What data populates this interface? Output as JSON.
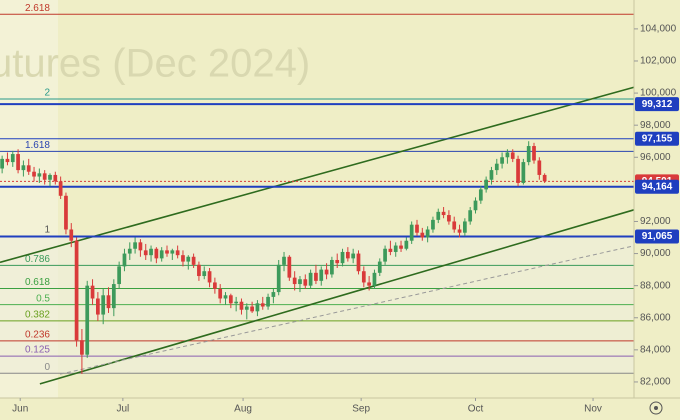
{
  "chart_data": {
    "type": "candlestick",
    "watermark": "utures (Dec 2024)",
    "up_color": "#3d9a5b",
    "down_color": "#d93a3a",
    "ylim": [
      81000,
      105800
    ],
    "yticks": [
      {
        "value": 82000,
        "label": "82,000"
      },
      {
        "value": 84000,
        "label": "84,000"
      },
      {
        "value": 86000,
        "label": "86,000"
      },
      {
        "value": 88000,
        "label": "88,000"
      },
      {
        "value": 90000,
        "label": "90,000"
      },
      {
        "value": 92000,
        "label": "92,000"
      },
      {
        "value": 96000,
        "label": "96,000"
      },
      {
        "value": 98000,
        "label": "98,000"
      },
      {
        "value": 100000,
        "label": "100,000"
      },
      {
        "value": 102000,
        "label": "102,000"
      },
      {
        "value": 104000,
        "label": "104,000"
      }
    ],
    "xlim": [
      -0.4,
      118.8
    ],
    "xticks": [
      {
        "value": 3.4,
        "label": "Jun"
      },
      {
        "value": 22.7,
        "label": "Jul"
      },
      {
        "value": 45.3,
        "label": "Aug"
      },
      {
        "value": 67.5,
        "label": "Sep"
      },
      {
        "value": 89,
        "label": "Oct"
      },
      {
        "value": 111.1,
        "label": "Nov"
      }
    ],
    "fib": {
      "low": 82545,
      "high": 91090,
      "levels": [
        {
          "ratio": 2.618,
          "color": "#c0392b"
        },
        {
          "ratio": 2,
          "color": "#2a9a8a"
        },
        {
          "ratio": 1.618,
          "color": "#2a45b0"
        },
        {
          "ratio": 1,
          "color": "#555555"
        },
        {
          "ratio": 0.786,
          "color": "#3a9a5a"
        },
        {
          "ratio": 0.618,
          "color": "#3aa040"
        },
        {
          "ratio": 0.5,
          "color": "#4caf50"
        },
        {
          "ratio": 0.382,
          "color": "#6aa020"
        },
        {
          "ratio": 0.236,
          "color": "#c0392b"
        },
        {
          "ratio": 0.125,
          "color": "#8a5fb0"
        },
        {
          "ratio": 0,
          "color": "#888888"
        }
      ]
    },
    "price_levels": [
      {
        "value": 99312,
        "label": "99,312",
        "color": "#1f3fbf",
        "width": 2,
        "dash": false
      },
      {
        "value": 97155,
        "label": "97,155",
        "color": "#1f3fbf",
        "width": 1,
        "dash": false
      },
      {
        "value": 94501,
        "label": "94,501",
        "color": "#d93a3a",
        "width": 1,
        "dash": true
      },
      {
        "value": 94164,
        "label": "94,164",
        "color": "#1f3fbf",
        "width": 2,
        "dash": false
      },
      {
        "value": 91065,
        "label": "91,065",
        "color": "#1f3fbf",
        "width": 2,
        "dash": false
      }
    ],
    "trendlines": [
      {
        "color": "#2e6b1e",
        "dash": false,
        "x": [
          -0.4,
          118.8
        ],
        "prices": [
          89455,
          100364
        ]
      },
      {
        "color": "#2e6b1e",
        "dash": false,
        "x": [
          7.1,
          118.8
        ],
        "prices": [
          81879,
          92727
        ]
      },
      {
        "color": "#999999",
        "dash": true,
        "x": [
          10.9,
          118.8
        ],
        "prices": [
          82485,
          90485
        ]
      }
    ],
    "candles": [
      [
        95300,
        96100,
        95000,
        95900
      ],
      [
        95900,
        96300,
        95500,
        95700
      ],
      [
        95700,
        96400,
        95400,
        96200
      ],
      [
        96200,
        96500,
        95000,
        95200
      ],
      [
        95200,
        95800,
        94800,
        95500
      ],
      [
        95500,
        95900,
        94900,
        95100
      ],
      [
        95100,
        95400,
        94500,
        94800
      ],
      [
        94800,
        95300,
        94400,
        95000
      ],
      [
        95000,
        95200,
        94300,
        94600
      ],
      [
        94600,
        95000,
        94200,
        94900
      ],
      [
        94900,
        95100,
        94300,
        94500
      ],
      [
        94500,
        94800,
        93400,
        93600
      ],
      [
        93600,
        93800,
        91200,
        91500
      ],
      [
        91500,
        91900,
        90400,
        90800
      ],
      [
        90800,
        91000,
        84200,
        84600
      ],
      [
        84600,
        85300,
        82500,
        83700
      ],
      [
        83700,
        88300,
        83500,
        88000
      ],
      [
        88000,
        88400,
        86800,
        87200
      ],
      [
        87200,
        87600,
        85800,
        86200
      ],
      [
        86200,
        87800,
        85600,
        87400
      ],
      [
        87400,
        87900,
        86300,
        86600
      ],
      [
        86600,
        88400,
        86100,
        88100
      ],
      [
        88100,
        89500,
        87800,
        89200
      ],
      [
        89200,
        90300,
        88900,
        90000
      ],
      [
        90000,
        90700,
        89600,
        90300
      ],
      [
        90300,
        91000,
        90000,
        90700
      ],
      [
        90700,
        90900,
        89800,
        90200
      ],
      [
        90200,
        90600,
        89600,
        89900
      ],
      [
        89900,
        90500,
        89500,
        90300
      ],
      [
        90300,
        90400,
        89400,
        89700
      ],
      [
        89700,
        90400,
        89500,
        90200
      ],
      [
        90200,
        90500,
        89800,
        90000
      ],
      [
        90000,
        90300,
        89600,
        90200
      ],
      [
        90200,
        90500,
        89700,
        89900
      ],
      [
        89900,
        90200,
        89200,
        89500
      ],
      [
        89500,
        89900,
        89000,
        89800
      ],
      [
        89800,
        90000,
        89100,
        89300
      ],
      [
        89300,
        89500,
        88300,
        88600
      ],
      [
        88600,
        89200,
        88400,
        88900
      ],
      [
        88900,
        89100,
        87900,
        88200
      ],
      [
        88200,
        88500,
        87500,
        87800
      ],
      [
        87800,
        88100,
        86900,
        87200
      ],
      [
        87200,
        87600,
        86800,
        87400
      ],
      [
        87400,
        87500,
        86600,
        86900
      ],
      [
        86900,
        87300,
        86400,
        87000
      ],
      [
        87000,
        87200,
        86200,
        86500
      ],
      [
        86500,
        86900,
        85900,
        86700
      ],
      [
        86700,
        87000,
        86300,
        86400
      ],
      [
        86400,
        87100,
        86100,
        86900
      ],
      [
        86900,
        87300,
        86500,
        86700
      ],
      [
        86700,
        87500,
        86500,
        87300
      ],
      [
        87300,
        87800,
        86900,
        87600
      ],
      [
        87600,
        89600,
        87400,
        89300
      ],
      [
        89300,
        90100,
        88900,
        89800
      ],
      [
        89800,
        89900,
        88300,
        88500
      ],
      [
        88500,
        88900,
        87700,
        88100
      ],
      [
        88100,
        88600,
        87600,
        88400
      ],
      [
        88400,
        88700,
        87800,
        88000
      ],
      [
        88000,
        89000,
        87800,
        88800
      ],
      [
        88800,
        89300,
        88100,
        88300
      ],
      [
        88300,
        89200,
        88000,
        89000
      ],
      [
        89000,
        89400,
        88400,
        88700
      ],
      [
        88700,
        89800,
        88500,
        89600
      ],
      [
        89600,
        90000,
        89100,
        89400
      ],
      [
        89400,
        90300,
        89200,
        90100
      ],
      [
        90100,
        90400,
        89500,
        89700
      ],
      [
        89700,
        90300,
        89400,
        90000
      ],
      [
        90000,
        90200,
        88700,
        88900
      ],
      [
        88900,
        89200,
        87900,
        88200
      ],
      [
        88200,
        88600,
        87700,
        88000
      ],
      [
        88000,
        89000,
        87800,
        88800
      ],
      [
        88800,
        89700,
        88600,
        89500
      ],
      [
        89500,
        90500,
        89300,
        90300
      ],
      [
        90300,
        90800,
        89900,
        90100
      ],
      [
        90100,
        90700,
        89800,
        90500
      ],
      [
        90500,
        90800,
        90100,
        90300
      ],
      [
        90300,
        91000,
        90200,
        90800
      ],
      [
        90800,
        92000,
        90600,
        91800
      ],
      [
        91800,
        92100,
        91100,
        91300
      ],
      [
        91300,
        91600,
        90800,
        91000
      ],
      [
        91000,
        91700,
        90700,
        91500
      ],
      [
        91500,
        92300,
        91300,
        92100
      ],
      [
        92100,
        92800,
        91900,
        92600
      ],
      [
        92600,
        92900,
        92200,
        92400
      ],
      [
        92400,
        92700,
        91800,
        92000
      ],
      [
        92000,
        92300,
        91300,
        91500
      ],
      [
        91500,
        91800,
        91000,
        91300
      ],
      [
        91300,
        92200,
        91100,
        92000
      ],
      [
        92000,
        92900,
        91800,
        92700
      ],
      [
        92700,
        93500,
        92500,
        93300
      ],
      [
        93300,
        94200,
        93100,
        94000
      ],
      [
        94000,
        94800,
        93800,
        94600
      ],
      [
        94600,
        95400,
        94300,
        95200
      ],
      [
        95200,
        95900,
        94900,
        95600
      ],
      [
        95600,
        96300,
        95300,
        96000
      ],
      [
        96000,
        96500,
        95600,
        96300
      ],
      [
        96300,
        96500,
        95700,
        95900
      ],
      [
        95900,
        96100,
        94200,
        94400
      ],
      [
        94400,
        95900,
        94300,
        95700
      ],
      [
        95700,
        97000,
        95500,
        96700
      ],
      [
        96700,
        96900,
        95600,
        95800
      ],
      [
        95800,
        96000,
        94600,
        94900
      ],
      [
        94900,
        95000,
        94400,
        94501
      ]
    ]
  }
}
